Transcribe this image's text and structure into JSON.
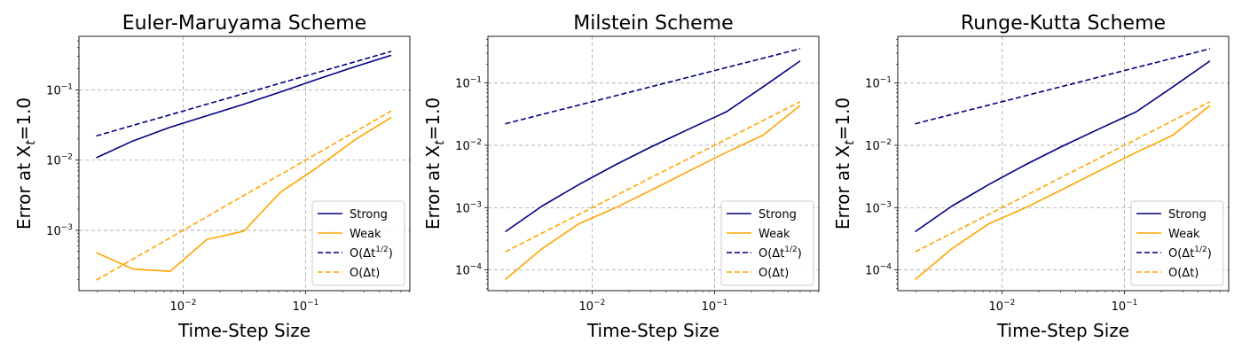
{
  "figure": {
    "sub_label": "t",
    "colors": {
      "strong": "#000080",
      "weak": "#FFA500",
      "grid": "#b0b0b0",
      "frame": "#000000",
      "legend_border": "#cccccc"
    }
  },
  "chart_data": [
    {
      "type": "line",
      "title": "Euler-Maruyama Scheme",
      "xlabel": "Time-Step Size",
      "ylabel_main": "Error at X",
      "ylabel_sub": "t",
      "ylabel_suffix": "=1.0",
      "xscale": "log",
      "yscale": "log",
      "xlim": [
        0.00141,
        0.71
      ],
      "ylim": [
        0.000138,
        0.58
      ],
      "xticks": [
        {
          "value": 0.01,
          "base": "10",
          "exp": "−2"
        },
        {
          "value": 0.1,
          "base": "10",
          "exp": "−1"
        }
      ],
      "yticks": [
        {
          "value": 0.001,
          "base": "10",
          "exp": "−3"
        },
        {
          "value": 0.01,
          "base": "10",
          "exp": "−2"
        },
        {
          "value": 0.1,
          "base": "10",
          "exp": "−1"
        }
      ],
      "grid": true,
      "legend_position": "lower-right",
      "x": [
        0.001953125,
        0.00390625,
        0.0078125,
        0.015625,
        0.03125,
        0.0625,
        0.125,
        0.25,
        0.5
      ],
      "series": [
        {
          "name": "Strong",
          "style": "solid",
          "color": "#000080",
          "values": [
            0.0108,
            0.0188,
            0.0294,
            0.0428,
            0.0625,
            0.0935,
            0.142,
            0.213,
            0.312
          ]
        },
        {
          "name": "Weak",
          "style": "solid",
          "color": "#FFA500",
          "values": [
            0.00048,
            0.00028,
            0.00026,
            0.00074,
            0.00097,
            0.0035,
            0.0079,
            0.0192,
            0.0405
          ]
        },
        {
          "name": "O(Δt",
          "name_sup": "1/2",
          "name_end": ")",
          "style": "dashed",
          "color": "#000080",
          "values": [
            0.0221,
            0.0313,
            0.0442,
            0.0625,
            0.0884,
            0.125,
            0.177,
            0.25,
            0.354
          ]
        },
        {
          "name": "O(Δt)",
          "style": "dashed",
          "color": "#FFA500",
          "values": [
            0.000195,
            0.00039,
            0.00078,
            0.00156,
            0.00313,
            0.00625,
            0.0125,
            0.025,
            0.05
          ]
        }
      ]
    },
    {
      "type": "line",
      "title": "Milstein Scheme",
      "xlabel": "Time-Step Size",
      "ylabel_main": "Error at X",
      "ylabel_sub": "t",
      "ylabel_suffix": "=1.0",
      "xscale": "log",
      "yscale": "log",
      "xlim": [
        0.00141,
        0.71
      ],
      "ylim": [
        4.65e-05,
        0.56
      ],
      "xticks": [
        {
          "value": 0.01,
          "base": "10",
          "exp": "−2"
        },
        {
          "value": 0.1,
          "base": "10",
          "exp": "−1"
        }
      ],
      "yticks": [
        {
          "value": 0.0001,
          "base": "10",
          "exp": "−4"
        },
        {
          "value": 0.001,
          "base": "10",
          "exp": "−3"
        },
        {
          "value": 0.01,
          "base": "10",
          "exp": "−2"
        },
        {
          "value": 0.1,
          "base": "10",
          "exp": "−1"
        }
      ],
      "grid": true,
      "legend_position": "lower-right",
      "x": [
        0.001953125,
        0.00390625,
        0.0078125,
        0.015625,
        0.03125,
        0.0625,
        0.125,
        0.25,
        0.5
      ],
      "series": [
        {
          "name": "Strong",
          "style": "solid",
          "color": "#000080",
          "values": [
            0.00041,
            0.00106,
            0.00235,
            0.0049,
            0.0097,
            0.0184,
            0.0345,
            0.0872,
            0.226
          ]
        },
        {
          "name": "Weak",
          "style": "solid",
          "color": "#FFA500",
          "values": [
            7e-05,
            0.00022,
            0.00055,
            0.001,
            0.00196,
            0.0039,
            0.0077,
            0.0146,
            0.0435
          ]
        },
        {
          "name": "O(Δt",
          "name_sup": "1/2",
          "name_end": ")",
          "style": "dashed",
          "color": "#000080",
          "values": [
            0.0221,
            0.0313,
            0.0442,
            0.0625,
            0.0884,
            0.125,
            0.177,
            0.25,
            0.354
          ]
        },
        {
          "name": "O(Δt)",
          "style": "dashed",
          "color": "#FFA500",
          "values": [
            0.000195,
            0.00039,
            0.00078,
            0.00156,
            0.00313,
            0.00625,
            0.0125,
            0.025,
            0.05
          ]
        }
      ]
    },
    {
      "type": "line",
      "title": "Runge-Kutta Scheme",
      "xlabel": "Time-Step Size",
      "ylabel_main": "Error at X",
      "ylabel_sub": "t",
      "ylabel_suffix": "=1.0",
      "xscale": "log",
      "yscale": "log",
      "xlim": [
        0.00141,
        0.71
      ],
      "ylim": [
        4.65e-05,
        0.56
      ],
      "xticks": [
        {
          "value": 0.01,
          "base": "10",
          "exp": "−2"
        },
        {
          "value": 0.1,
          "base": "10",
          "exp": "−1"
        }
      ],
      "yticks": [
        {
          "value": 0.0001,
          "base": "10",
          "exp": "−4"
        },
        {
          "value": 0.001,
          "base": "10",
          "exp": "−3"
        },
        {
          "value": 0.01,
          "base": "10",
          "exp": "−2"
        },
        {
          "value": 0.1,
          "base": "10",
          "exp": "−1"
        }
      ],
      "grid": true,
      "legend_position": "lower-right",
      "x": [
        0.001953125,
        0.00390625,
        0.0078125,
        0.015625,
        0.03125,
        0.0625,
        0.125,
        0.25,
        0.5
      ],
      "series": [
        {
          "name": "Strong",
          "style": "solid",
          "color": "#000080",
          "values": [
            0.00041,
            0.00106,
            0.00235,
            0.0049,
            0.0097,
            0.0184,
            0.0345,
            0.0872,
            0.226
          ]
        },
        {
          "name": "Weak",
          "style": "solid",
          "color": "#FFA500",
          "values": [
            7e-05,
            0.00022,
            0.00055,
            0.001,
            0.00196,
            0.0039,
            0.0077,
            0.0146,
            0.0435
          ]
        },
        {
          "name": "O(Δt",
          "name_sup": "1/2",
          "name_end": ")",
          "style": "dashed",
          "color": "#000080",
          "values": [
            0.0221,
            0.0313,
            0.0442,
            0.0625,
            0.0884,
            0.125,
            0.177,
            0.25,
            0.354
          ]
        },
        {
          "name": "O(Δt)",
          "style": "dashed",
          "color": "#FFA500",
          "values": [
            0.000195,
            0.00039,
            0.00078,
            0.00156,
            0.00313,
            0.00625,
            0.0125,
            0.025,
            0.05
          ]
        }
      ]
    }
  ]
}
